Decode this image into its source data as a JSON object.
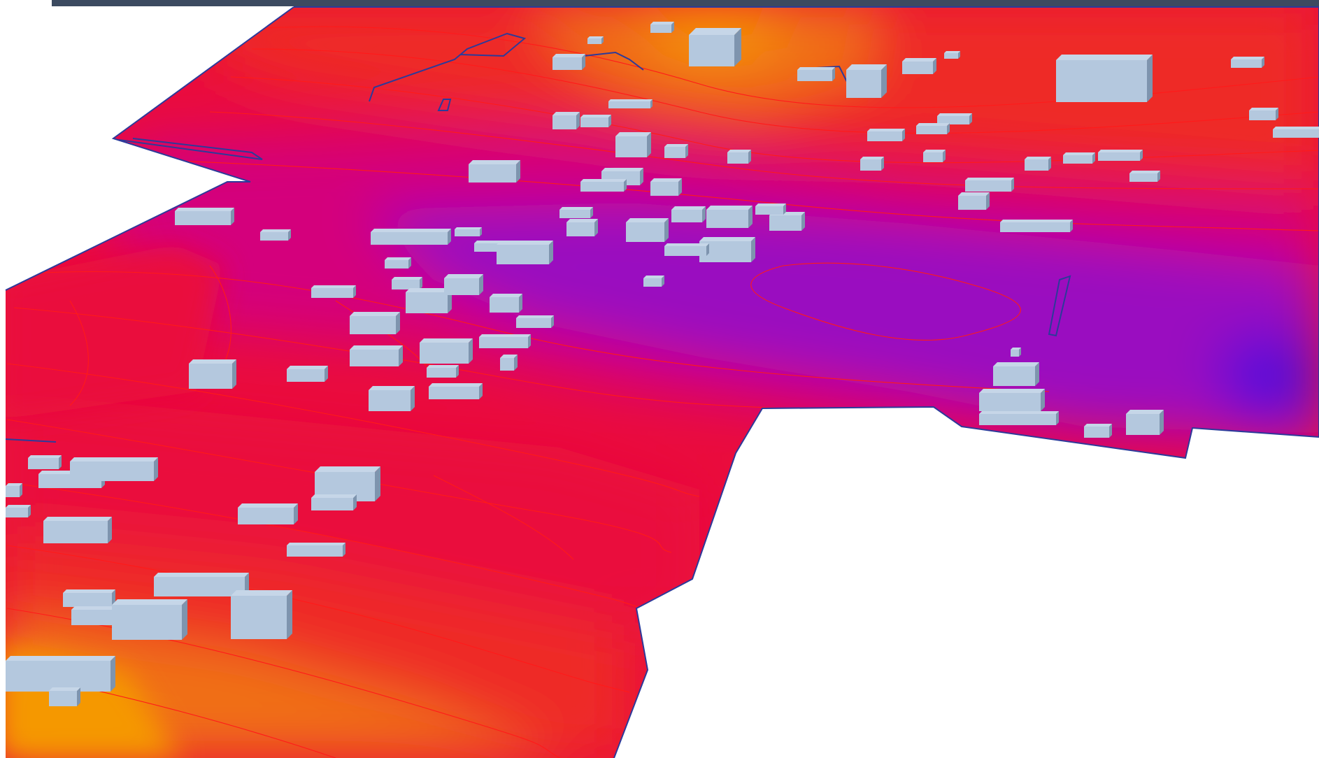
{
  "view": {
    "kind": "3d-terrain-heatmap",
    "palette": {
      "blue": "#5a10d8",
      "violet": "#9a0cc0",
      "magenta": "#d4067c",
      "crimson": "#ea0c3c",
      "red": "#ee2a26",
      "orange": "#f07016",
      "amber": "#f59800",
      "contour_line": "#ff1a1a",
      "outline": "#2d3a9a",
      "building": "#b4c8de",
      "building_side": "#7e94ae",
      "building_top": "#c6d6e8",
      "top_bar": "#3c4a60",
      "background": "#ffffff"
    },
    "building_count": 96
  }
}
